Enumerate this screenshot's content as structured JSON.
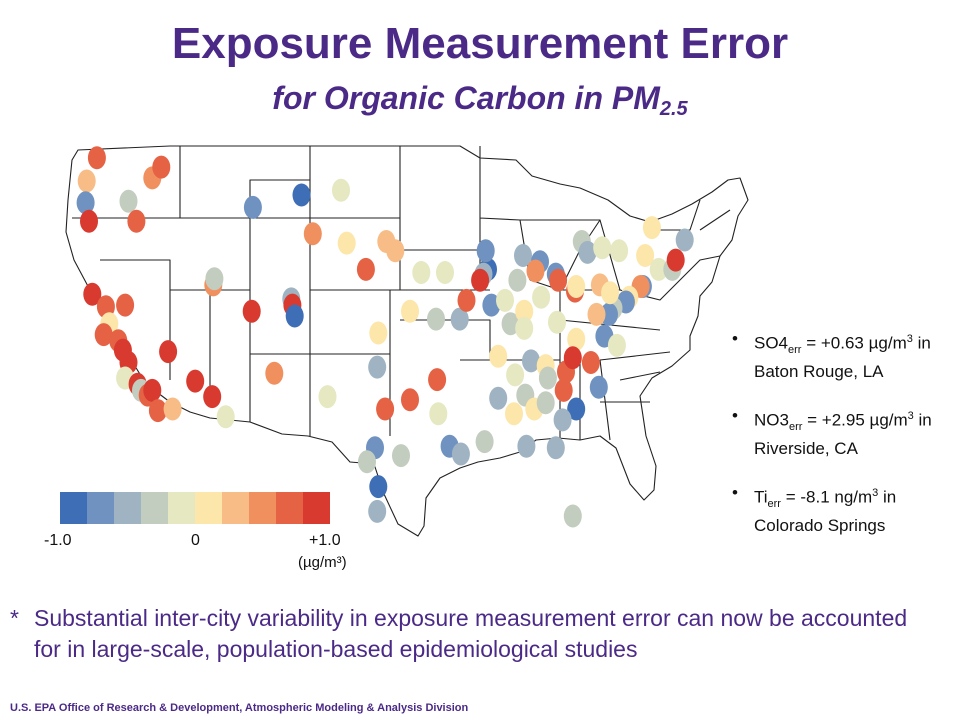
{
  "title": "Exposure Measurement Error",
  "subtitle_main": "for Organic Carbon in PM",
  "subtitle_sub": "2.5",
  "legend": {
    "colors": [
      "#3e6eb5",
      "#6f92c0",
      "#9fb3c2",
      "#c3cdbf",
      "#e5e8c0",
      "#fde6a9",
      "#f8bd86",
      "#f1905f",
      "#e56245",
      "#d93a2f"
    ],
    "label_min": "-1.0",
    "label_mid": "0",
    "label_max": "+1.0",
    "unit": "(µg/m³)"
  },
  "notes": [
    {
      "pre": "SO4",
      "sub": "err",
      "mid": " = +0.63 µg/m",
      "sup": "3",
      "post": " in Baton Rouge, LA"
    },
    {
      "pre": "NO3",
      "sub": "err",
      "mid": " = +2.95 µg/m",
      "sup": "3",
      "post": " in Riverside, CA"
    },
    {
      "pre": "Ti",
      "sub": "err",
      "mid": " = -8.1 ng/m",
      "sup": "3",
      "post": " in Colorado Springs"
    }
  ],
  "footnote_marker": "*",
  "footnote": "Substantial inter-city variability in exposure measurement error can now be accounted for in large-scale, population-based epidemiological studies",
  "credit": "U.S. EPA Office of Research & Development, Atmospheric Modeling & Analysis Division",
  "sites": [
    {
      "lon": -123.2,
      "lat": 47.5,
      "c": 6
    },
    {
      "lon": -123.3,
      "lat": 46.1,
      "c": 1
    },
    {
      "lon": -123.0,
      "lat": 44.9,
      "c": 9
    },
    {
      "lon": -122.3,
      "lat": 49.0,
      "c": 8
    },
    {
      "lon": -119.5,
      "lat": 46.2,
      "c": 3
    },
    {
      "lon": -117.4,
      "lat": 47.7,
      "c": 7
    },
    {
      "lon": -116.6,
      "lat": 48.4,
      "c": 8
    },
    {
      "lon": -118.8,
      "lat": 44.9,
      "c": 8
    },
    {
      "lon": -122.7,
      "lat": 40.2,
      "c": 9
    },
    {
      "lon": -121.5,
      "lat": 39.4,
      "c": 8
    },
    {
      "lon": -121.2,
      "lat": 38.3,
      "c": 5
    },
    {
      "lon": -121.7,
      "lat": 37.6,
      "c": 8
    },
    {
      "lon": -120.4,
      "lat": 37.2,
      "c": 8
    },
    {
      "lon": -120.0,
      "lat": 36.6,
      "c": 9
    },
    {
      "lon": -119.5,
      "lat": 35.8,
      "c": 9
    },
    {
      "lon": -119.8,
      "lat": 34.8,
      "c": 4
    },
    {
      "lon": -118.7,
      "lat": 34.4,
      "c": 9
    },
    {
      "lon": -118.4,
      "lat": 34.0,
      "c": 3
    },
    {
      "lon": -117.8,
      "lat": 33.7,
      "c": 8
    },
    {
      "lon": -117.4,
      "lat": 34.0,
      "c": 9
    },
    {
      "lon": -116.9,
      "lat": 32.7,
      "c": 8
    },
    {
      "lon": -115.6,
      "lat": 32.8,
      "c": 6
    },
    {
      "lon": -119.8,
      "lat": 39.5,
      "c": 8
    },
    {
      "lon": -116.0,
      "lat": 36.5,
      "c": 9
    },
    {
      "lon": -113.6,
      "lat": 34.6,
      "c": 9
    },
    {
      "lon": -112.1,
      "lat": 33.6,
      "c": 9
    },
    {
      "lon": -110.9,
      "lat": 32.3,
      "c": 4
    },
    {
      "lon": -112.0,
      "lat": 40.8,
      "c": 7
    },
    {
      "lon": -111.9,
      "lat": 41.2,
      "c": 3
    },
    {
      "lon": -108.6,
      "lat": 39.1,
      "c": 9
    },
    {
      "lon": -105.1,
      "lat": 39.9,
      "c": 2
    },
    {
      "lon": -105.0,
      "lat": 39.5,
      "c": 9
    },
    {
      "lon": -104.8,
      "lat": 38.8,
      "c": 0
    },
    {
      "lon": -106.6,
      "lat": 35.1,
      "c": 7
    },
    {
      "lon": -108.5,
      "lat": 45.8,
      "c": 1
    },
    {
      "lon": -104.2,
      "lat": 46.6,
      "c": 0
    },
    {
      "lon": -103.2,
      "lat": 44.1,
      "c": 7
    },
    {
      "lon": -100.7,
      "lat": 46.9,
      "c": 4
    },
    {
      "lon": -100.2,
      "lat": 43.5,
      "c": 5
    },
    {
      "lon": -98.5,
      "lat": 41.8,
      "c": 8
    },
    {
      "lon": -96.7,
      "lat": 43.6,
      "c": 6
    },
    {
      "lon": -95.9,
      "lat": 43.0,
      "c": 6
    },
    {
      "lon": -97.4,
      "lat": 37.7,
      "c": 5
    },
    {
      "lon": -97.5,
      "lat": 35.5,
      "c": 2
    },
    {
      "lon": -101.9,
      "lat": 33.6,
      "c": 4
    },
    {
      "lon": -96.8,
      "lat": 32.8,
      "c": 8
    },
    {
      "lon": -94.6,
      "lat": 33.4,
      "c": 8
    },
    {
      "lon": -97.7,
      "lat": 30.3,
      "c": 1
    },
    {
      "lon": -95.4,
      "lat": 29.8,
      "c": 3
    },
    {
      "lon": -98.4,
      "lat": 29.4,
      "c": 3
    },
    {
      "lon": -97.4,
      "lat": 27.8,
      "c": 0
    },
    {
      "lon": -97.5,
      "lat": 26.2,
      "c": 2
    },
    {
      "lon": -92.2,
      "lat": 34.7,
      "c": 8
    },
    {
      "lon": -91.1,
      "lat": 30.4,
      "c": 1
    },
    {
      "lon": -90.1,
      "lat": 29.9,
      "c": 2
    },
    {
      "lon": -92.1,
      "lat": 32.5,
      "c": 4
    },
    {
      "lon": -90.2,
      "lat": 38.6,
      "c": 2
    },
    {
      "lon": -92.3,
      "lat": 38.6,
      "c": 3
    },
    {
      "lon": -91.5,
      "lat": 41.6,
      "c": 4
    },
    {
      "lon": -93.6,
      "lat": 41.6,
      "c": 4
    },
    {
      "lon": -94.6,
      "lat": 39.1,
      "c": 5
    },
    {
      "lon": -87.7,
      "lat": 41.8,
      "c": 0
    },
    {
      "lon": -87.9,
      "lat": 43.0,
      "c": 1
    },
    {
      "lon": -88.1,
      "lat": 41.5,
      "c": 2
    },
    {
      "lon": -88.4,
      "lat": 41.1,
      "c": 9
    },
    {
      "lon": -89.6,
      "lat": 39.8,
      "c": 8
    },
    {
      "lon": -87.4,
      "lat": 39.5,
      "c": 1
    },
    {
      "lon": -86.2,
      "lat": 39.8,
      "c": 4
    },
    {
      "lon": -85.7,
      "lat": 38.3,
      "c": 3
    },
    {
      "lon": -85.1,
      "lat": 41.1,
      "c": 3
    },
    {
      "lon": -84.6,
      "lat": 42.7,
      "c": 2
    },
    {
      "lon": -83.1,
      "lat": 42.3,
      "c": 1
    },
    {
      "lon": -83.5,
      "lat": 41.7,
      "c": 7
    },
    {
      "lon": -84.5,
      "lat": 39.1,
      "c": 5
    },
    {
      "lon": -83.0,
      "lat": 40.0,
      "c": 4
    },
    {
      "lon": -81.7,
      "lat": 41.5,
      "c": 1
    },
    {
      "lon": -81.5,
      "lat": 41.1,
      "c": 8
    },
    {
      "lon": -80.0,
      "lat": 40.4,
      "c": 8
    },
    {
      "lon": -79.9,
      "lat": 40.7,
      "c": 5
    },
    {
      "lon": -79.4,
      "lat": 43.6,
      "c": 3
    },
    {
      "lon": -78.9,
      "lat": 42.9,
      "c": 2
    },
    {
      "lon": -77.6,
      "lat": 43.2,
      "c": 4
    },
    {
      "lon": -76.1,
      "lat": 43.0,
      "c": 4
    },
    {
      "lon": -73.8,
      "lat": 42.7,
      "c": 5
    },
    {
      "lon": -73.2,
      "lat": 44.5,
      "c": 5
    },
    {
      "lon": -72.6,
      "lat": 41.8,
      "c": 4
    },
    {
      "lon": -71.4,
      "lat": 41.8,
      "c": 3
    },
    {
      "lon": -71.1,
      "lat": 42.4,
      "c": 9
    },
    {
      "lon": -70.3,
      "lat": 43.7,
      "c": 2
    },
    {
      "lon": -74.0,
      "lat": 40.7,
      "c": 1
    },
    {
      "lon": -74.2,
      "lat": 40.7,
      "c": 7
    },
    {
      "lon": -75.2,
      "lat": 40.0,
      "c": 5
    },
    {
      "lon": -75.5,
      "lat": 39.7,
      "c": 1
    },
    {
      "lon": -76.6,
      "lat": 39.3,
      "c": 3
    },
    {
      "lon": -77.0,
      "lat": 38.9,
      "c": 1
    },
    {
      "lon": -77.4,
      "lat": 37.5,
      "c": 1
    },
    {
      "lon": -76.3,
      "lat": 36.9,
      "c": 4
    },
    {
      "lon": -77.8,
      "lat": 40.8,
      "c": 6
    },
    {
      "lon": -76.9,
      "lat": 40.3,
      "c": 5
    },
    {
      "lon": -78.1,
      "lat": 38.9,
      "c": 6
    },
    {
      "lon": -79.9,
      "lat": 37.3,
      "c": 5
    },
    {
      "lon": -81.6,
      "lat": 38.4,
      "c": 4
    },
    {
      "lon": -84.5,
      "lat": 38.0,
      "c": 4
    },
    {
      "lon": -86.8,
      "lat": 36.2,
      "c": 5
    },
    {
      "lon": -85.3,
      "lat": 35.0,
      "c": 4
    },
    {
      "lon": -83.9,
      "lat": 35.9,
      "c": 2
    },
    {
      "lon": -82.6,
      "lat": 35.6,
      "c": 5
    },
    {
      "lon": -80.8,
      "lat": 35.2,
      "c": 8
    },
    {
      "lon": -80.2,
      "lat": 36.1,
      "c": 9
    },
    {
      "lon": -78.6,
      "lat": 35.8,
      "c": 8
    },
    {
      "lon": -77.9,
      "lat": 34.2,
      "c": 1
    },
    {
      "lon": -81.0,
      "lat": 34.0,
      "c": 8
    },
    {
      "lon": -79.9,
      "lat": 32.8,
      "c": 0
    },
    {
      "lon": -82.4,
      "lat": 34.8,
      "c": 3
    },
    {
      "lon": -84.4,
      "lat": 33.7,
      "c": 3
    },
    {
      "lon": -83.6,
      "lat": 32.8,
      "c": 5
    },
    {
      "lon": -81.1,
      "lat": 32.1,
      "c": 2
    },
    {
      "lon": -86.8,
      "lat": 33.5,
      "c": 2
    },
    {
      "lon": -85.4,
      "lat": 32.5,
      "c": 5
    },
    {
      "lon": -88.0,
      "lat": 30.7,
      "c": 3
    },
    {
      "lon": -82.6,
      "lat": 33.2,
      "c": 3
    },
    {
      "lon": -84.3,
      "lat": 30.4,
      "c": 2
    },
    {
      "lon": -81.7,
      "lat": 30.3,
      "c": 2
    },
    {
      "lon": -80.2,
      "lat": 25.9,
      "c": 3
    }
  ]
}
